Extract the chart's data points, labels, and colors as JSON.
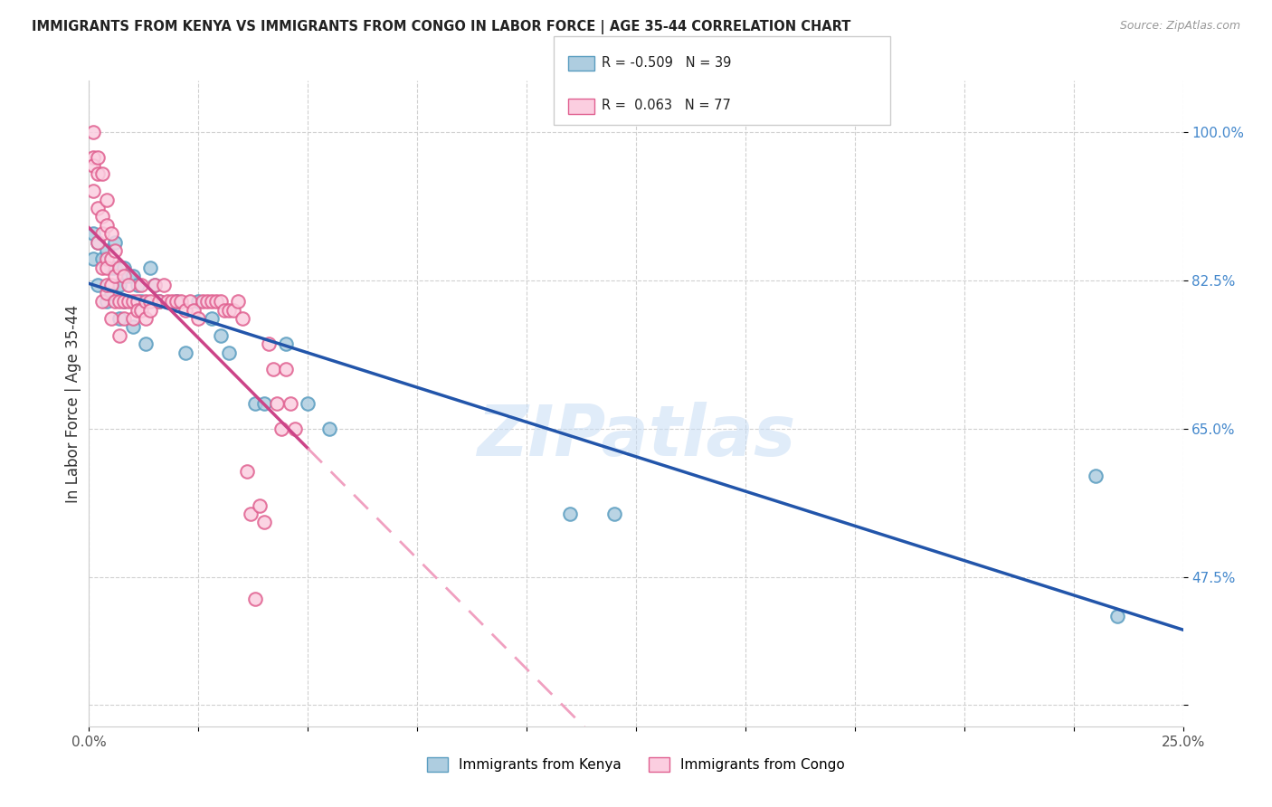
{
  "title": "IMMIGRANTS FROM KENYA VS IMMIGRANTS FROM CONGO IN LABOR FORCE | AGE 35-44 CORRELATION CHART",
  "source": "Source: ZipAtlas.com",
  "ylabel": "In Labor Force | Age 35-44",
  "xlim": [
    0.0,
    0.25
  ],
  "ylim": [
    0.3,
    1.06
  ],
  "kenya_R": -0.509,
  "kenya_N": 39,
  "congo_R": 0.063,
  "congo_N": 77,
  "kenya_color_face": "#aecde0",
  "kenya_color_edge": "#5a9dc0",
  "congo_color_face": "#fbcee0",
  "congo_color_edge": "#e06090",
  "kenya_line_color": "#2255aa",
  "congo_line_solid_color": "#cc4488",
  "congo_line_dash_color": "#f0a0c0",
  "watermark": "ZIPatlas",
  "ytick_pos": [
    0.325,
    0.475,
    0.65,
    0.825,
    1.0
  ],
  "ytick_labels": [
    "",
    "47.5%",
    "65.0%",
    "82.5%",
    "100.0%"
  ],
  "kenya_x": [
    0.001,
    0.001,
    0.002,
    0.002,
    0.003,
    0.004,
    0.004,
    0.005,
    0.005,
    0.006,
    0.006,
    0.007,
    0.007,
    0.008,
    0.008,
    0.009,
    0.01,
    0.01,
    0.011,
    0.012,
    0.013,
    0.014,
    0.015,
    0.016,
    0.02,
    0.022,
    0.025,
    0.028,
    0.03,
    0.032,
    0.038,
    0.04,
    0.045,
    0.05,
    0.055,
    0.11,
    0.12,
    0.23,
    0.235
  ],
  "kenya_y": [
    0.88,
    0.85,
    0.87,
    0.82,
    0.85,
    0.86,
    0.8,
    0.84,
    0.81,
    0.84,
    0.87,
    0.82,
    0.78,
    0.84,
    0.8,
    0.83,
    0.83,
    0.77,
    0.82,
    0.8,
    0.75,
    0.84,
    0.82,
    0.8,
    0.8,
    0.74,
    0.8,
    0.78,
    0.76,
    0.74,
    0.68,
    0.68,
    0.75,
    0.68,
    0.65,
    0.55,
    0.55,
    0.595,
    0.43
  ],
  "congo_x": [
    0.001,
    0.001,
    0.001,
    0.001,
    0.002,
    0.002,
    0.002,
    0.002,
    0.003,
    0.003,
    0.003,
    0.003,
    0.003,
    0.004,
    0.004,
    0.004,
    0.004,
    0.004,
    0.004,
    0.005,
    0.005,
    0.005,
    0.005,
    0.006,
    0.006,
    0.006,
    0.007,
    0.007,
    0.007,
    0.008,
    0.008,
    0.008,
    0.009,
    0.009,
    0.01,
    0.01,
    0.011,
    0.011,
    0.012,
    0.012,
    0.013,
    0.013,
    0.014,
    0.014,
    0.015,
    0.016,
    0.017,
    0.018,
    0.019,
    0.02,
    0.021,
    0.022,
    0.023,
    0.024,
    0.025,
    0.026,
    0.027,
    0.028,
    0.029,
    0.03,
    0.031,
    0.032,
    0.033,
    0.034,
    0.035,
    0.036,
    0.037,
    0.038,
    0.039,
    0.04,
    0.041,
    0.042,
    0.043,
    0.044,
    0.045,
    0.046,
    0.047
  ],
  "congo_y": [
    1.0,
    0.97,
    0.96,
    0.93,
    0.97,
    0.95,
    0.91,
    0.87,
    0.95,
    0.9,
    0.88,
    0.84,
    0.8,
    0.92,
    0.89,
    0.85,
    0.81,
    0.84,
    0.82,
    0.88,
    0.85,
    0.82,
    0.78,
    0.86,
    0.83,
    0.8,
    0.84,
    0.8,
    0.76,
    0.83,
    0.8,
    0.78,
    0.82,
    0.8,
    0.8,
    0.78,
    0.8,
    0.79,
    0.82,
    0.79,
    0.8,
    0.78,
    0.8,
    0.79,
    0.82,
    0.8,
    0.82,
    0.8,
    0.8,
    0.8,
    0.8,
    0.79,
    0.8,
    0.79,
    0.78,
    0.8,
    0.8,
    0.8,
    0.8,
    0.8,
    0.79,
    0.79,
    0.79,
    0.8,
    0.78,
    0.6,
    0.55,
    0.45,
    0.56,
    0.54,
    0.75,
    0.72,
    0.68,
    0.65,
    0.72,
    0.68,
    0.65
  ]
}
